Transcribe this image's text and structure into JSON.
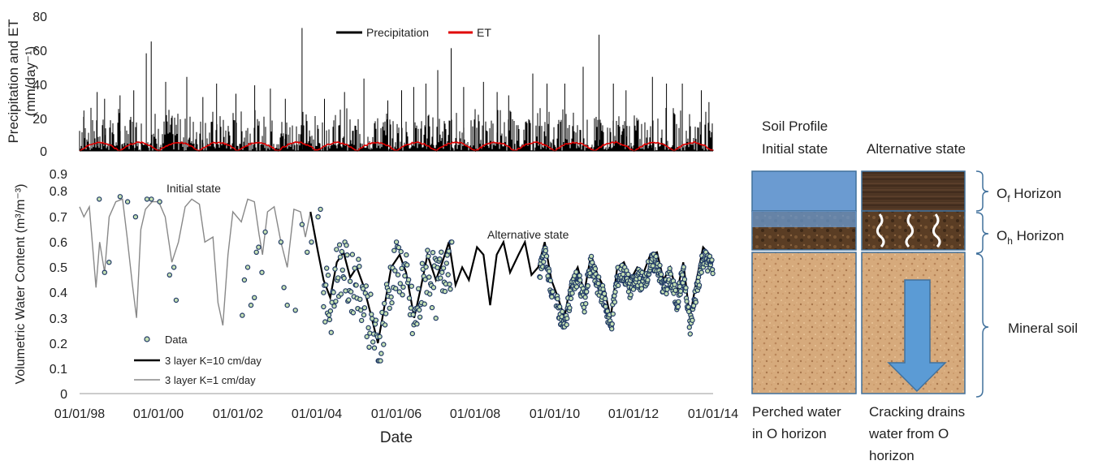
{
  "chart_data": [
    {
      "type": "bar",
      "ylabel_line1": "Precipitation and ET",
      "ylabel_line2": "(mm/day⁻¹)",
      "ylim": [
        0,
        80
      ],
      "yticks": [
        "0",
        "20",
        "40",
        "60",
        "80"
      ],
      "grid": false,
      "legend": {
        "position": "top-center",
        "entries": [
          {
            "label": "Precipitation",
            "color": "#000000"
          },
          {
            "label": "ET",
            "color": "#e00000"
          }
        ]
      },
      "x_domain": [
        "1998-01-01",
        "2014-01-01"
      ],
      "series": [
        {
          "name": "Precipitation",
          "type": "bar",
          "color": "#000000",
          "events": [
            [
              "1998-02-10",
              24
            ],
            [
              "1998-06-12",
              35
            ],
            [
              "1998-08-20",
              31
            ],
            [
              "1999-01-09",
              33
            ],
            [
              "1999-05-16",
              36
            ],
            [
              "1999-09-08",
              58
            ],
            [
              "1999-10-24",
              65
            ],
            [
              "2000-03-05",
              41
            ],
            [
              "2000-09-16",
              44
            ],
            [
              "2001-02-11",
              32
            ],
            [
              "2001-06-18",
              40
            ],
            [
              "2001-12-13",
              34
            ],
            [
              "2002-06-04",
              39
            ],
            [
              "2002-10-27",
              37
            ],
            [
              "2003-03-14",
              31
            ],
            [
              "2003-08-15",
              73
            ],
            [
              "2004-03-09",
              31
            ],
            [
              "2004-09-10",
              35
            ],
            [
              "2005-03-08",
              43
            ],
            [
              "2005-10-14",
              30
            ],
            [
              "2006-02-19",
              36
            ],
            [
              "2006-06-10",
              38
            ],
            [
              "2006-10-01",
              40
            ],
            [
              "2007-01-18",
              48
            ],
            [
              "2007-05-22",
              61
            ],
            [
              "2007-09-14",
              38
            ],
            [
              "2008-03-15",
              41
            ],
            [
              "2008-07-19",
              35
            ],
            [
              "2008-11-02",
              33
            ],
            [
              "2009-06-13",
              46
            ],
            [
              "2009-10-22",
              40
            ],
            [
              "2010-04-04",
              40
            ],
            [
              "2010-09-20",
              50
            ],
            [
              "2011-02-14",
              69
            ],
            [
              "2011-06-26",
              40
            ],
            [
              "2011-10-21",
              36
            ],
            [
              "2012-06-20",
              44
            ],
            [
              "2012-10-28",
              40
            ],
            [
              "2013-03-23",
              40
            ],
            [
              "2013-09-14",
              36
            ],
            [
              "2013-11-24",
              29
            ]
          ]
        },
        {
          "name": "ET",
          "type": "line",
          "color": "#e00000",
          "model": "seasonal cycle, about 0-5 mm/day, peak in mid-year",
          "peak": 5
        }
      ]
    },
    {
      "type": "line",
      "xlabel": "Date",
      "ylabel": "Volumetric Water Content (m³/m⁻³)",
      "ylim": [
        0,
        0.9
      ],
      "yticks": [
        "0",
        "0.1",
        "0.2",
        "0.3",
        "0.4",
        "0.5",
        "0.6",
        "0.7",
        "0.8",
        "0.9"
      ],
      "xticks": [
        "01/01/98",
        "01/01/00",
        "01/01/02",
        "01/01/04",
        "01/01/06",
        "01/01/08",
        "01/01/10",
        "01/01/12",
        "01/01/14"
      ],
      "x_domain": [
        "1998-01-01",
        "2014-01-01"
      ],
      "grid": false,
      "legend": {
        "position": "bottom-left"
      },
      "annotations": {
        "initial": "Initial state",
        "alternative": "Alternative state"
      },
      "series": [
        {
          "name": "3 layer K=1 cm/day",
          "color": "#888888",
          "points": [
            [
              "1998-01-01",
              0.74
            ],
            [
              "1998-02-10",
              0.7
            ],
            [
              "1998-04-01",
              0.74
            ],
            [
              "1998-06-01",
              0.42
            ],
            [
              "1998-07-05",
              0.6
            ],
            [
              "1998-08-20",
              0.48
            ],
            [
              "1998-10-01",
              0.7
            ],
            [
              "1998-12-01",
              0.76
            ],
            [
              "1999-02-01",
              0.77
            ],
            [
              "1999-03-15",
              0.62
            ],
            [
              "1999-05-01",
              0.44
            ],
            [
              "1999-06-10",
              0.3
            ],
            [
              "1999-07-20",
              0.65
            ],
            [
              "1999-09-01",
              0.73
            ],
            [
              "1999-11-01",
              0.76
            ],
            [
              "2000-01-01",
              0.76
            ],
            [
              "2000-03-01",
              0.7
            ],
            [
              "2000-05-01",
              0.52
            ],
            [
              "2000-07-01",
              0.6
            ],
            [
              "2000-09-01",
              0.74
            ],
            [
              "2000-11-01",
              0.77
            ],
            [
              "2001-01-10",
              0.75
            ],
            [
              "2001-03-01",
              0.6
            ],
            [
              "2001-05-15",
              0.62
            ],
            [
              "2001-07-01",
              0.36
            ],
            [
              "2001-08-15",
              0.27
            ],
            [
              "2001-10-01",
              0.55
            ],
            [
              "2001-11-15",
              0.72
            ],
            [
              "2002-02-01",
              0.68
            ],
            [
              "2002-04-01",
              0.77
            ],
            [
              "2002-06-01",
              0.76
            ],
            [
              "2002-07-15",
              0.63
            ],
            [
              "2002-08-15",
              0.55
            ],
            [
              "2002-10-01",
              0.72
            ],
            [
              "2002-12-01",
              0.74
            ],
            [
              "2003-02-01",
              0.6
            ],
            [
              "2003-04-01",
              0.5
            ],
            [
              "2003-06-01",
              0.73
            ],
            [
              "2003-08-01",
              0.72
            ],
            [
              "2003-09-15",
              0.62
            ],
            [
              "2003-11-01",
              0.72
            ]
          ]
        },
        {
          "name": "3 layer K=10 cm/day",
          "color": "#000000",
          "points": [
            [
              "2003-11-01",
              0.72
            ],
            [
              "2004-01-10",
              0.56
            ],
            [
              "2004-03-01",
              0.45
            ],
            [
              "2004-05-01",
              0.38
            ],
            [
              "2004-07-01",
              0.52
            ],
            [
              "2004-09-01",
              0.56
            ],
            [
              "2004-11-01",
              0.46
            ],
            [
              "2005-01-01",
              0.5
            ],
            [
              "2005-03-01",
              0.43
            ],
            [
              "2005-05-01",
              0.33
            ],
            [
              "2005-07-15",
              0.2
            ],
            [
              "2005-09-15",
              0.35
            ],
            [
              "2005-11-15",
              0.5
            ],
            [
              "2006-02-01",
              0.55
            ],
            [
              "2006-04-01",
              0.48
            ],
            [
              "2006-06-15",
              0.3
            ],
            [
              "2006-08-15",
              0.42
            ],
            [
              "2006-10-15",
              0.55
            ],
            [
              "2007-01-01",
              0.45
            ],
            [
              "2007-03-01",
              0.52
            ],
            [
              "2007-05-01",
              0.6
            ],
            [
              "2007-07-01",
              0.43
            ],
            [
              "2007-09-01",
              0.5
            ],
            [
              "2007-11-01",
              0.45
            ],
            [
              "2008-01-15",
              0.58
            ],
            [
              "2008-03-15",
              0.55
            ],
            [
              "2008-05-15",
              0.35
            ],
            [
              "2008-07-15",
              0.55
            ],
            [
              "2008-09-15",
              0.6
            ],
            [
              "2008-11-15",
              0.48
            ],
            [
              "2009-02-01",
              0.55
            ],
            [
              "2009-04-01",
              0.6
            ],
            [
              "2009-06-01",
              0.47
            ],
            [
              "2009-08-01",
              0.5
            ],
            [
              "2009-10-01",
              0.6
            ],
            [
              "2009-12-01",
              0.45
            ],
            [
              "2010-02-01",
              0.38
            ],
            [
              "2010-04-01",
              0.3
            ],
            [
              "2010-06-01",
              0.45
            ],
            [
              "2010-08-01",
              0.5
            ],
            [
              "2010-10-01",
              0.4
            ],
            [
              "2010-12-01",
              0.55
            ],
            [
              "2011-02-01",
              0.47
            ],
            [
              "2011-04-01",
              0.42
            ],
            [
              "2011-06-01",
              0.3
            ],
            [
              "2011-08-01",
              0.5
            ],
            [
              "2011-10-01",
              0.52
            ],
            [
              "2011-12-01",
              0.45
            ],
            [
              "2012-02-01",
              0.5
            ],
            [
              "2012-04-01",
              0.48
            ],
            [
              "2012-06-01",
              0.55
            ],
            [
              "2012-08-01",
              0.56
            ],
            [
              "2012-10-01",
              0.45
            ],
            [
              "2012-12-01",
              0.5
            ],
            [
              "2013-02-01",
              0.4
            ],
            [
              "2013-04-01",
              0.52
            ],
            [
              "2013-06-01",
              0.3
            ],
            [
              "2013-08-01",
              0.45
            ],
            [
              "2013-10-01",
              0.58
            ],
            [
              "2013-12-01",
              0.55
            ]
          ]
        },
        {
          "name": "Data",
          "type": "scatter",
          "marker_fill": "#c5e0b4",
          "marker_edge": "#1f3864",
          "points": [
            [
              "1998-07-01",
              0.77
            ],
            [
              "1998-08-20",
              0.48
            ],
            [
              "1998-09-30",
              0.52
            ],
            [
              "1999-01-10",
              0.78
            ],
            [
              "1999-03-20",
              0.76
            ],
            [
              "1999-06-01",
              0.7
            ],
            [
              "1999-09-15",
              0.77
            ],
            [
              "1999-10-25",
              0.77
            ],
            [
              "2000-01-10",
              0.76
            ],
            [
              "2000-04-10",
              0.47
            ],
            [
              "2000-05-20",
              0.5
            ],
            [
              "2000-06-10",
              0.37
            ],
            [
              "2002-02-10",
              0.31
            ],
            [
              "2002-03-01",
              0.45
            ],
            [
              "2002-04-01",
              0.5
            ],
            [
              "2002-05-01",
              0.35
            ],
            [
              "2002-06-01",
              0.38
            ],
            [
              "2002-06-20",
              0.56
            ],
            [
              "2002-07-10",
              0.58
            ],
            [
              "2002-08-10",
              0.48
            ],
            [
              "2002-09-10",
              0.64
            ],
            [
              "2003-02-01",
              0.6
            ],
            [
              "2003-03-01",
              0.42
            ],
            [
              "2003-04-01",
              0.35
            ],
            [
              "2003-06-15",
              0.33
            ],
            [
              "2003-08-15",
              0.67
            ],
            [
              "2003-10-01",
              0.56
            ],
            [
              "2003-11-10",
              0.6
            ],
            [
              "2004-01-10",
              0.7
            ],
            [
              "2004-02-01",
              0.73
            ],
            [
              "2004-03-01",
              0.4
            ]
          ]
        },
        {
          "name": "Data dense",
          "type": "scatter",
          "legend": false,
          "windows": [
            {
              "from": "2004-03-01",
              "to": "2007-06-01",
              "every_days": 7,
              "jitter": 0.12
            },
            {
              "from": "2009-08-15",
              "to": "2009-12-15",
              "every_days": 4,
              "jitter": 0.03
            },
            {
              "from": "2010-01-15",
              "to": "2014-01-01",
              "every_days": 4,
              "jitter": 0.04
            }
          ]
        }
      ]
    }
  ],
  "legend_data": "Data",
  "legend_k10": "3 layer K=10 cm/day",
  "legend_k1": "3 layer K=1 cm/day",
  "profile": {
    "title_line1": "Soil Profile",
    "title_line2": "Initial state",
    "alt_title": "Alternative state",
    "of_prefix": "O",
    "of_sub": "f",
    "of_suffix": " Horizon",
    "oh_prefix": "O",
    "oh_sub": "h",
    "oh_suffix": " Horizon",
    "mineral": "Mineral soil",
    "caption_left_1": "Perched water",
    "caption_left_2": "in O horizon",
    "caption_right_1": "Cracking drains",
    "caption_right_2": "water from O",
    "caption_right_3": "horizon",
    "colors": {
      "water": "#6b9bd1",
      "organic": "#6b4a2a",
      "mineral": "#d4a878",
      "arrow": "#5b9bd5",
      "border": "#41719c"
    }
  }
}
